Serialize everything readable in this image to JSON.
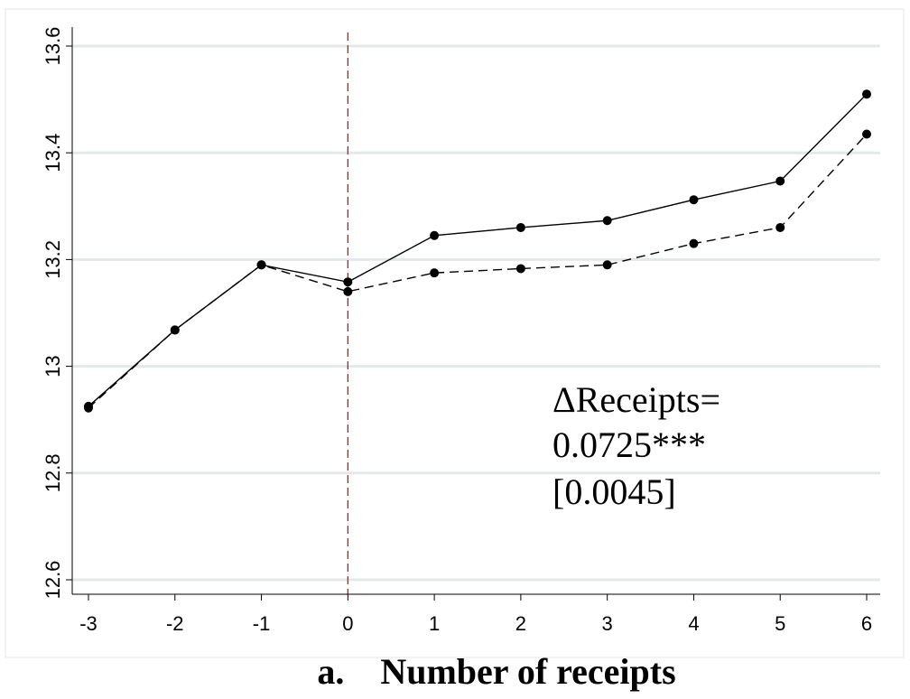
{
  "chart_data": {
    "type": "line",
    "x": [
      -3,
      -2,
      -1,
      0,
      1,
      2,
      3,
      4,
      5,
      6
    ],
    "series": [
      {
        "style": "solid",
        "values": [
          12.925,
          13.068,
          13.19,
          13.158,
          13.245,
          13.26,
          13.273,
          13.312,
          13.347,
          13.51
        ]
      },
      {
        "style": "dashed",
        "values": [
          12.922,
          13.068,
          13.19,
          13.14,
          13.175,
          13.183,
          13.19,
          13.23,
          13.26,
          13.435
        ]
      }
    ],
    "xticks": [
      "-3",
      "-2",
      "-1",
      "0",
      "1",
      "2",
      "3",
      "4",
      "5",
      "6"
    ],
    "yticks": [
      "12.6",
      "12.8",
      "13",
      "13.2",
      "13.4",
      "13.6"
    ],
    "ylim": [
      12.6,
      13.6
    ],
    "xlim": [
      -3,
      6
    ],
    "grid": "horizontal",
    "reference_line_x": 0,
    "reference_line_color": "#b22222",
    "annotation_lines": [
      "ΔReceipts=",
      "0.0725***",
      "[0.0045]"
    ],
    "caption": "a.    Number of receipts"
  }
}
